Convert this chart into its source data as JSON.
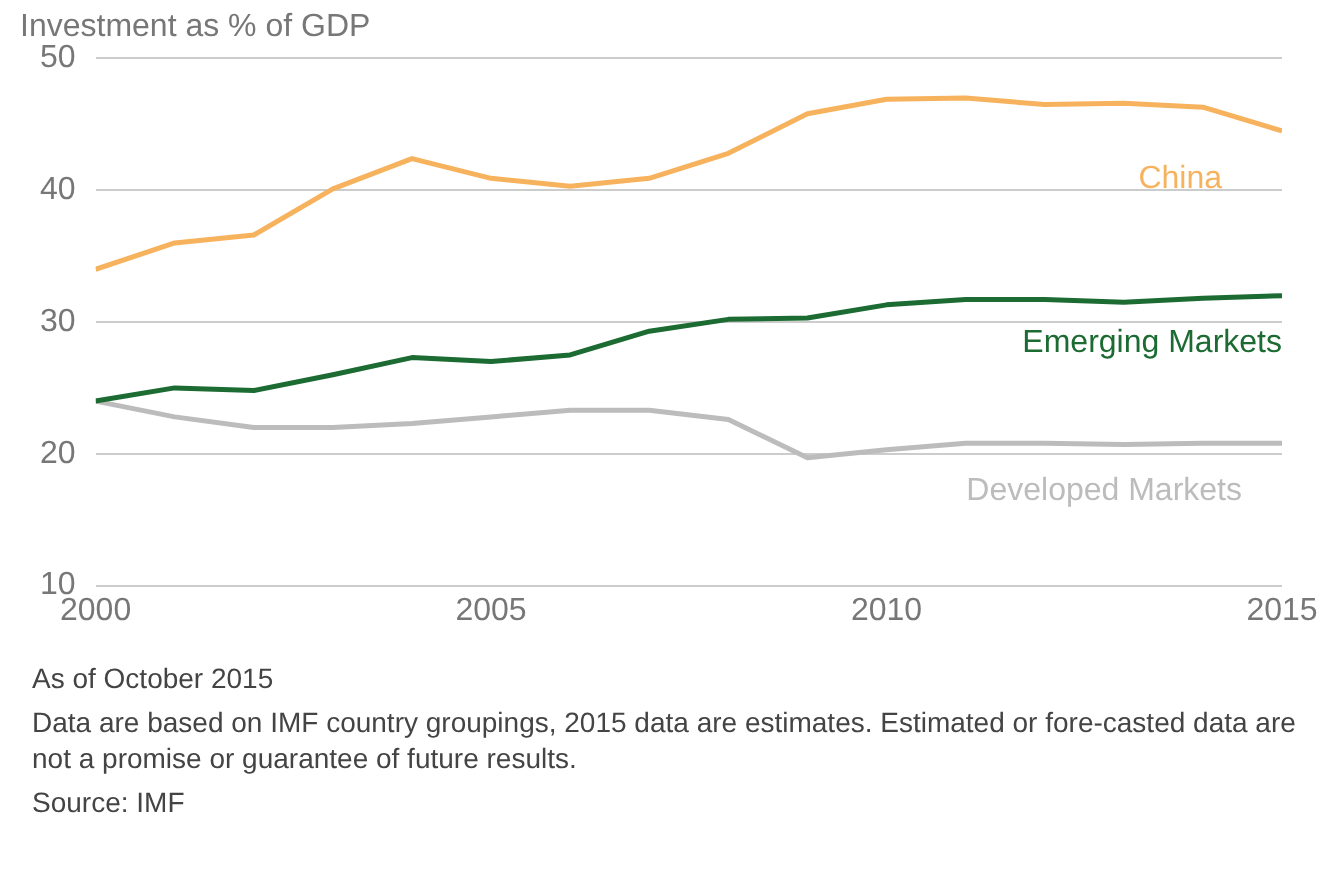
{
  "chart_data": {
    "type": "line",
    "title": "Investment as % of GDP",
    "x": [
      2000,
      2001,
      2002,
      2003,
      2004,
      2005,
      2006,
      2007,
      2008,
      2009,
      2010,
      2011,
      2012,
      2013,
      2014,
      2015
    ],
    "series": [
      {
        "name": "China",
        "color": "#f7b25e",
        "values": [
          34.0,
          36.0,
          36.6,
          40.1,
          42.4,
          40.9,
          40.3,
          40.9,
          42.8,
          45.8,
          46.9,
          47.0,
          46.5,
          46.6,
          46.3,
          44.5
        ]
      },
      {
        "name": "Emerging Markets",
        "color": "#1b6b32",
        "values": [
          24.0,
          25.0,
          24.8,
          26.0,
          27.3,
          27.0,
          27.5,
          29.3,
          30.2,
          30.3,
          31.3,
          31.7,
          31.7,
          31.5,
          31.8,
          32.0
        ]
      },
      {
        "name": "Developed Markets",
        "color": "#bcbcbc",
        "values": [
          24.0,
          22.8,
          22.0,
          22.0,
          22.3,
          22.8,
          23.3,
          23.3,
          22.6,
          19.7,
          20.3,
          20.8,
          20.8,
          20.7,
          20.8,
          20.8
        ]
      }
    ],
    "xlim": [
      2000,
      2015
    ],
    "xticks": [
      2000,
      2005,
      2010,
      2015
    ],
    "ylim": [
      10,
      50
    ],
    "yticks": [
      10,
      20,
      30,
      40,
      50
    ],
    "grid": "y",
    "legend": false,
    "marker": "none",
    "line_style": "solid",
    "annotations": [
      "As of October 2015",
      "Data are based on IMF country groupings, 2015 data are estimates. Estimated or fore-casted data are not a promise or guarantee of future results.",
      "Source: IMF"
    ]
  }
}
